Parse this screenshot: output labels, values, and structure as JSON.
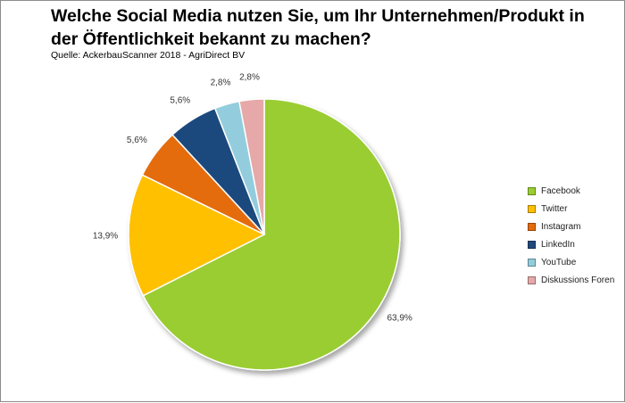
{
  "title": "Welche Social Media nutzen Sie, um Ihr Unternehmen/Produkt in der Öffentlichkeit bekannt zu machen?",
  "source": "Quelle: AckerbauScanner 2018 - AgriDirect BV",
  "chart_data": {
    "type": "pie",
    "title": "Welche Social Media nutzen Sie, um Ihr Unternehmen/Produkt in der Öffentlichkeit bekannt zu machen?",
    "subtitle": "Quelle: AckerbauScanner 2018 - AgriDirect BV",
    "legend_position": "right",
    "slices": [
      {
        "name": "Facebook",
        "value": 63.9,
        "label": "63,9%",
        "color": "#9ACD32"
      },
      {
        "name": "Twitter",
        "value": 13.9,
        "label": "13,9%",
        "color": "#FFC000"
      },
      {
        "name": "Instagram",
        "value": 5.6,
        "label": "5,6%",
        "color": "#E46C0A"
      },
      {
        "name": "LinkedIn",
        "value": 5.6,
        "label": "5,6%",
        "color": "#1F497D"
      },
      {
        "name": "YouTube",
        "value": 2.8,
        "label": "2,8%",
        "color": "#93CDDD"
      },
      {
        "name": "Diskussions Foren",
        "value": 2.8,
        "label": "2,8%",
        "color": "#E6A8A8"
      }
    ]
  }
}
